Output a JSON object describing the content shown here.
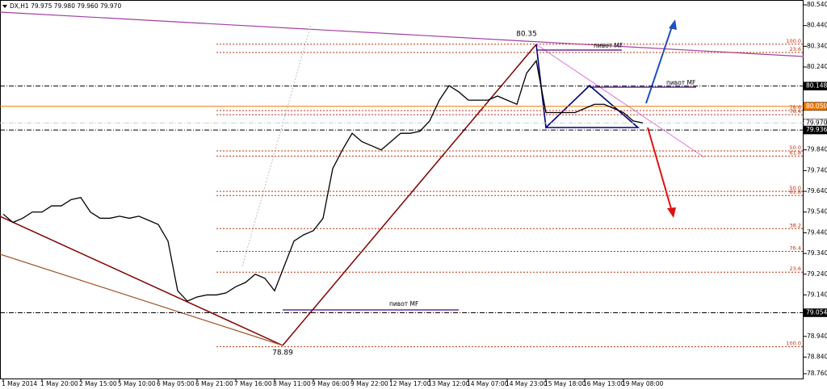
{
  "chart_data": {
    "type": "line",
    "title": "DX,H1  79.975 79.980 79.960 79.970",
    "categories": [
      "1 May 2014",
      null,
      null,
      null,
      "1 May 20:00",
      null,
      null,
      null,
      "2 May 15:00",
      null,
      null,
      null,
      "5 May 10:00",
      null,
      null,
      null,
      "6 May 05:00",
      null,
      null,
      null,
      "6 May 21:00",
      null,
      null,
      null,
      "7 May 16:00",
      null,
      null,
      null,
      "8 May 11:00",
      null,
      null,
      null,
      "9 May 06:00",
      null,
      null,
      null,
      "9 May 22:00",
      null,
      null,
      null,
      "12 May 17:00",
      null,
      null,
      null,
      "13 May 12:00",
      null,
      null,
      null,
      "14 May 07:00",
      null,
      null,
      null,
      "14 May 23:00",
      null,
      null,
      null,
      "15 May 18:00",
      null,
      null,
      null,
      "16 May 13:00",
      null,
      null,
      null,
      "19 May 08:00",
      null,
      null
    ],
    "values": [
      79.53,
      79.49,
      79.51,
      79.54,
      79.54,
      79.57,
      79.57,
      79.6,
      79.61,
      79.54,
      79.51,
      79.51,
      79.52,
      79.51,
      79.52,
      79.5,
      79.48,
      79.4,
      79.16,
      79.11,
      79.13,
      79.14,
      79.14,
      79.15,
      79.18,
      79.2,
      79.24,
      79.22,
      79.16,
      79.28,
      79.4,
      79.43,
      79.45,
      79.51,
      79.75,
      79.84,
      79.92,
      79.88,
      79.86,
      79.84,
      79.88,
      79.92,
      79.92,
      79.93,
      79.98,
      80.08,
      80.15,
      80.12,
      80.08,
      80.08,
      80.08,
      80.1,
      80.08,
      80.06,
      80.21,
      80.27,
      80.02,
      80.02,
      80.02,
      80.02,
      80.04,
      80.06,
      80.06,
      80.04,
      80.02,
      79.98,
      79.97
    ],
    "color": "#000000",
    "ylim": [
      78.76,
      80.54
    ],
    "yticks": [
      {
        "value": 80.54,
        "label": "80.540"
      },
      {
        "value": 80.44,
        "label": "80.440"
      },
      {
        "value": 80.34,
        "label": "80.340"
      },
      {
        "value": 80.24,
        "label": "80.240"
      },
      {
        "value": 79.84,
        "label": "79.840"
      },
      {
        "value": 79.74,
        "label": "79.740"
      },
      {
        "value": 79.64,
        "label": "79.640"
      },
      {
        "value": 79.54,
        "label": "79.540"
      },
      {
        "value": 79.44,
        "label": "79.440"
      },
      {
        "value": 79.34,
        "label": "79.340"
      },
      {
        "value": 79.24,
        "label": "79.240"
      },
      {
        "value": 79.14,
        "label": "79.140"
      },
      {
        "value": 78.94,
        "label": "78.940"
      },
      {
        "value": 78.84,
        "label": "78.840"
      },
      {
        "value": 78.76,
        "label": "78.760"
      }
    ],
    "price_levels": [
      {
        "value": 80.148,
        "label": "80.148",
        "color": "#000000"
      },
      {
        "value": 80.05,
        "label": "80.050",
        "color": "#f07800"
      },
      {
        "value": 79.97,
        "label": "79.970",
        "color": "#ffffff"
      },
      {
        "value": 79.936,
        "label": "79.936",
        "color": "#000000"
      },
      {
        "value": 79.054,
        "label": "79.054",
        "color": "#000000"
      }
    ],
    "fib_levels": [
      {
        "value": 80.35,
        "label": "100.0"
      },
      {
        "value": 80.31,
        "label": "23.6"
      },
      {
        "value": 80.03,
        "label": "78.6"
      },
      {
        "value": 80.01,
        "label": "76.4"
      },
      {
        "value": 79.835,
        "label": "50.0"
      },
      {
        "value": 79.81,
        "label": "61.8"
      },
      {
        "value": 79.64,
        "label": "50.0"
      },
      {
        "value": 79.62,
        "label": "61.8"
      },
      {
        "value": 79.46,
        "label": "38.2"
      },
      {
        "value": 79.35,
        "label": "76.4"
      },
      {
        "value": 79.25,
        "label": "23.6"
      },
      {
        "value": 78.89,
        "label": "100.0"
      }
    ],
    "annotations": {
      "high": "80.35",
      "low": "78.89",
      "pivot_1": "пивот MF",
      "pivot_2": "пивот MF",
      "pivot_3": "пивот MF"
    }
  }
}
